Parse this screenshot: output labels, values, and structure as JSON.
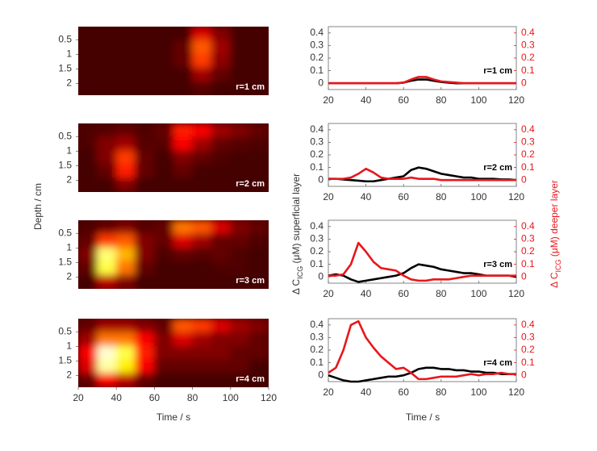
{
  "figure_labels": {
    "left_xlabel": "Time / s",
    "left_ylabel": "Depth / cm",
    "right_xlabel": "Time / s",
    "right_ylabel": {
      "pre": "Δ C",
      "sub": "ICG",
      "post": " (μM) superficial layer"
    },
    "right_y2label": {
      "pre": "Δ C",
      "sub": "ICG",
      "post": " (μM) deeper layer"
    }
  },
  "chart_data": [
    {
      "type": "heatmap",
      "label": "r=1 cm",
      "xlim": [
        20,
        120
      ],
      "ylim": [
        0.05,
        2.4
      ],
      "y_inverted": true,
      "yticks": [
        0.5,
        1,
        1.5,
        2
      ],
      "z": [
        [
          0,
          0,
          0,
          0,
          0,
          0,
          0.25,
          0.1,
          0,
          0
        ],
        [
          0,
          0,
          0,
          0,
          0,
          0.05,
          0.45,
          0.15,
          0,
          0
        ],
        [
          0,
          0,
          0,
          0,
          0,
          0.05,
          0.4,
          0.12,
          0,
          0
        ],
        [
          0,
          0,
          0,
          0,
          0,
          0,
          0.15,
          0.05,
          0,
          0
        ],
        [
          0,
          0,
          0,
          0,
          0,
          0,
          0.03,
          0,
          0,
          0
        ]
      ]
    },
    {
      "type": "heatmap",
      "label": "r=2 cm",
      "xlim": [
        20,
        120
      ],
      "ylim": [
        0.05,
        2.4
      ],
      "y_inverted": true,
      "yticks": [
        0.5,
        1,
        1.5,
        2
      ],
      "z": [
        [
          0.02,
          0.03,
          0.05,
          0.02,
          0.05,
          0.35,
          0.3,
          0.15,
          0.1,
          0.05
        ],
        [
          0.02,
          0.1,
          0.15,
          0.03,
          0.03,
          0.3,
          0.15,
          0.05,
          0.03,
          0.02
        ],
        [
          0,
          0.1,
          0.4,
          0.05,
          0,
          0.1,
          0.05,
          0.02,
          0,
          0
        ],
        [
          0,
          0.05,
          0.35,
          0.05,
          0,
          0.05,
          0,
          0,
          0,
          0
        ],
        [
          0,
          0,
          0.1,
          0,
          0,
          0,
          0,
          0,
          0,
          0
        ]
      ]
    },
    {
      "type": "heatmap",
      "label": "r=3 cm",
      "xlim": [
        20,
        120
      ],
      "ylim": [
        0.05,
        2.4
      ],
      "y_inverted": true,
      "yticks": [
        0.5,
        1,
        1.5,
        2
      ],
      "z": [
        [
          0.02,
          0.05,
          0.1,
          0.03,
          0.05,
          0.5,
          0.45,
          0.25,
          0.1,
          0.05
        ],
        [
          0.05,
          0.4,
          0.45,
          0.1,
          0.05,
          0.25,
          0.15,
          0.05,
          0.05,
          0.02
        ],
        [
          0.1,
          0.85,
          0.6,
          0.1,
          0.02,
          0.05,
          0.03,
          0.05,
          0.02,
          0
        ],
        [
          0.05,
          0.8,
          0.5,
          0.05,
          0,
          0,
          0,
          0.02,
          0.02,
          0
        ],
        [
          0,
          0.2,
          0.1,
          0,
          0,
          0,
          0,
          0,
          0,
          0
        ]
      ]
    },
    {
      "type": "heatmap",
      "label": "r=4 cm",
      "xlim": [
        20,
        120
      ],
      "ylim": [
        0.05,
        2.4
      ],
      "y_inverted": true,
      "yticks": [
        0.5,
        1,
        1.5,
        2
      ],
      "xticks": [
        20,
        40,
        60,
        80,
        100,
        120
      ],
      "z": [
        [
          0.05,
          0.15,
          0.15,
          0.1,
          0.05,
          0.45,
          0.4,
          0.25,
          0.15,
          0.1
        ],
        [
          0.15,
          0.5,
          0.5,
          0.3,
          0.1,
          0.25,
          0.15,
          0.1,
          0.1,
          0.05
        ],
        [
          0.3,
          0.95,
          0.8,
          0.35,
          0.1,
          0.1,
          0.1,
          0.1,
          0.05,
          0.05
        ],
        [
          0.25,
          0.9,
          0.7,
          0.3,
          0.05,
          0.05,
          0.05,
          0.05,
          0.05,
          0
        ],
        [
          0.05,
          0.3,
          0.2,
          0.05,
          0,
          0,
          0,
          0,
          0,
          0
        ]
      ]
    },
    {
      "type": "line",
      "label": "r=1 cm",
      "xlim": [
        20,
        120
      ],
      "xticks": [
        20,
        40,
        60,
        80,
        100,
        120
      ],
      "ylim": [
        -0.05,
        0.45
      ],
      "yticks": [
        0,
        0.1,
        0.2,
        0.3,
        0.4
      ],
      "y2lim": [
        -0.05,
        0.45
      ],
      "y2ticks": [
        0,
        0.1,
        0.2,
        0.3,
        0.4
      ],
      "x": [
        20,
        24,
        28,
        32,
        36,
        40,
        44,
        48,
        52,
        56,
        60,
        64,
        68,
        72,
        76,
        80,
        84,
        88,
        92,
        96,
        100,
        104,
        108,
        112,
        116,
        120
      ],
      "series": [
        {
          "color": "#000000",
          "values": [
            0,
            0,
            0,
            0,
            0,
            0,
            0,
            0,
            0,
            0,
            0.005,
            0.02,
            0.03,
            0.03,
            0.02,
            0.01,
            0.005,
            0,
            0,
            0,
            0,
            0,
            0,
            0,
            0,
            0
          ]
        },
        {
          "color": "#e8161b",
          "axis": "y2",
          "values": [
            0,
            0,
            0,
            0,
            0,
            0,
            0,
            0,
            0,
            0,
            0.005,
            0.03,
            0.05,
            0.05,
            0.03,
            0.015,
            0.01,
            0.005,
            0,
            0,
            0,
            0,
            0,
            0,
            0,
            0
          ]
        }
      ]
    },
    {
      "type": "line",
      "label": "r=2 cm",
      "xlim": [
        20,
        120
      ],
      "xticks": [
        20,
        40,
        60,
        80,
        100,
        120
      ],
      "ylim": [
        -0.05,
        0.45
      ],
      "yticks": [
        0,
        0.1,
        0.2,
        0.3,
        0.4
      ],
      "y2lim": [
        -0.05,
        0.45
      ],
      "y2ticks": [
        0,
        0.1,
        0.2,
        0.3,
        0.4
      ],
      "x": [
        20,
        24,
        28,
        32,
        36,
        40,
        44,
        48,
        52,
        56,
        60,
        64,
        68,
        72,
        76,
        80,
        84,
        88,
        92,
        96,
        100,
        104,
        108,
        112,
        116,
        120
      ],
      "series": [
        {
          "color": "#000000",
          "values": [
            0.01,
            0.01,
            0.005,
            0,
            -0.005,
            -0.01,
            -0.01,
            0,
            0.01,
            0.02,
            0.03,
            0.08,
            0.1,
            0.09,
            0.07,
            0.05,
            0.04,
            0.03,
            0.02,
            0.02,
            0.01,
            0.01,
            0.01,
            0.005,
            0.005,
            0
          ]
        },
        {
          "color": "#e8161b",
          "axis": "y2",
          "values": [
            0.01,
            0.01,
            0.01,
            0.02,
            0.05,
            0.09,
            0.06,
            0.02,
            0.01,
            0.01,
            0.01,
            0.02,
            0.01,
            0.01,
            0.01,
            0,
            0,
            0,
            0,
            0,
            0,
            0,
            0,
            0,
            0,
            0
          ]
        }
      ]
    },
    {
      "type": "line",
      "label": "r=3 cm",
      "xlim": [
        20,
        120
      ],
      "xticks": [
        20,
        40,
        60,
        80,
        100,
        120
      ],
      "ylim": [
        -0.05,
        0.45
      ],
      "yticks": [
        0,
        0.1,
        0.2,
        0.3,
        0.4
      ],
      "y2lim": [
        -0.05,
        0.45
      ],
      "y2ticks": [
        0,
        0.1,
        0.2,
        0.3,
        0.4
      ],
      "x": [
        20,
        24,
        28,
        32,
        36,
        40,
        44,
        48,
        52,
        56,
        60,
        64,
        68,
        72,
        76,
        80,
        84,
        88,
        92,
        96,
        100,
        104,
        108,
        112,
        116,
        120
      ],
      "series": [
        {
          "color": "#000000",
          "values": [
            0.01,
            0.02,
            0.01,
            -0.02,
            -0.04,
            -0.03,
            -0.02,
            -0.01,
            0,
            0.01,
            0.03,
            0.07,
            0.1,
            0.09,
            0.08,
            0.06,
            0.05,
            0.04,
            0.03,
            0.03,
            0.02,
            0.01,
            0.01,
            0.01,
            0.01,
            0
          ]
        },
        {
          "color": "#e8161b",
          "axis": "y2",
          "values": [
            0.01,
            0.01,
            0.02,
            0.1,
            0.27,
            0.2,
            0.12,
            0.07,
            0.06,
            0.05,
            0.01,
            -0.02,
            -0.03,
            -0.03,
            -0.02,
            -0.02,
            -0.02,
            -0.01,
            0,
            0.01,
            0.01,
            0.01,
            0.01,
            0.01,
            0.01,
            0.01
          ]
        }
      ]
    },
    {
      "type": "line",
      "label": "r=4 cm",
      "xlim": [
        20,
        120
      ],
      "xticks": [
        20,
        40,
        60,
        80,
        100,
        120
      ],
      "ylim": [
        -0.05,
        0.45
      ],
      "yticks": [
        0,
        0.1,
        0.2,
        0.3,
        0.4
      ],
      "y2lim": [
        -0.05,
        0.45
      ],
      "y2ticks": [
        0,
        0.1,
        0.2,
        0.3,
        0.4
      ],
      "x": [
        20,
        24,
        28,
        32,
        36,
        40,
        44,
        48,
        52,
        56,
        60,
        64,
        68,
        72,
        76,
        80,
        84,
        88,
        92,
        96,
        100,
        104,
        108,
        112,
        116,
        120
      ],
      "series": [
        {
          "color": "#000000",
          "values": [
            0,
            -0.02,
            -0.04,
            -0.05,
            -0.05,
            -0.04,
            -0.03,
            -0.02,
            -0.01,
            -0.01,
            0,
            0.02,
            0.05,
            0.06,
            0.06,
            0.05,
            0.05,
            0.04,
            0.04,
            0.03,
            0.03,
            0.02,
            0.02,
            0.01,
            0.01,
            0.01
          ]
        },
        {
          "color": "#e8161b",
          "axis": "y2",
          "values": [
            0.02,
            0.06,
            0.2,
            0.4,
            0.43,
            0.3,
            0.22,
            0.15,
            0.1,
            0.05,
            0.06,
            0.02,
            -0.03,
            -0.03,
            -0.02,
            -0.01,
            -0.01,
            -0.01,
            0,
            0.01,
            0,
            0.01,
            0.01,
            0.02,
            0.01,
            0.01
          ]
        }
      ]
    }
  ]
}
